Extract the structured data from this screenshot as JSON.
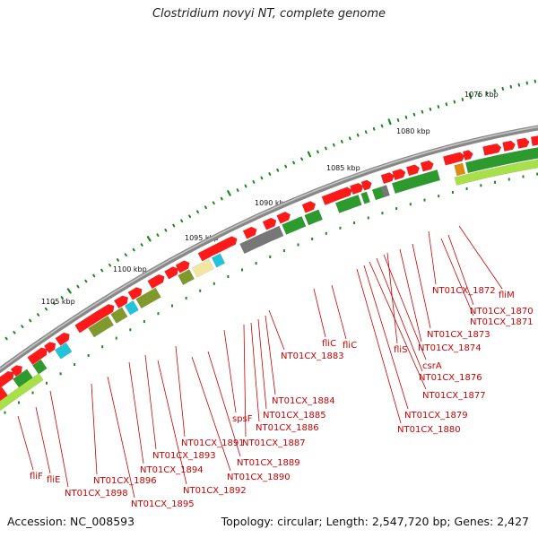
{
  "title": "Clostridium novyi NT, complete genome",
  "footer": {
    "accession": "Accession: NC_008593",
    "summary": "Topology: circular; Length: 2,547,720 bp; Genes: 2,427"
  },
  "scale": {
    "labels": [
      "1075 kbp",
      "1080 kbp",
      "1085 kbp",
      "1090 kbp",
      "1095 kbp",
      "1100 kbp",
      "1105 kbp"
    ],
    "dot_color": "#1a8a1a"
  },
  "colors": {
    "backbone": "#888888",
    "forward_gene": "#ff1a1a",
    "green_feature": "#2d9a2d",
    "olive_feature": "#7f9a2a",
    "grey_feature": "#777777",
    "pale_feature": "#f2e6a0",
    "cyan_feature": "#22c4d8",
    "lime_feature": "#a8e04a",
    "label_color": "#cc0000"
  },
  "gene_labels": [
    "fliM",
    "NT01CX_1872",
    "NT01CX_1870",
    "NT01CX_1871",
    "NT01CX_1873",
    "NT01CX_1874",
    "fliS",
    "csrA",
    "NT01CX_1876",
    "NT01CX_1877",
    "NT01CX_1879",
    "NT01CX_1880",
    "fliC",
    "fliC",
    "NT01CX_1883",
    "NT01CX_1884",
    "NT01CX_1885",
    "NT01CX_1886",
    "spsF",
    "NT01CX_1887",
    "NT01CX_1891",
    "NT01CX_1889",
    "NT01CX_1893",
    "NT01CX_1890",
    "NT01CX_1894",
    "NT01CX_1892",
    "NT01CX_1896",
    "NT01CX_1895",
    "NT01CX_1898",
    "fliE",
    "fliF"
  ]
}
